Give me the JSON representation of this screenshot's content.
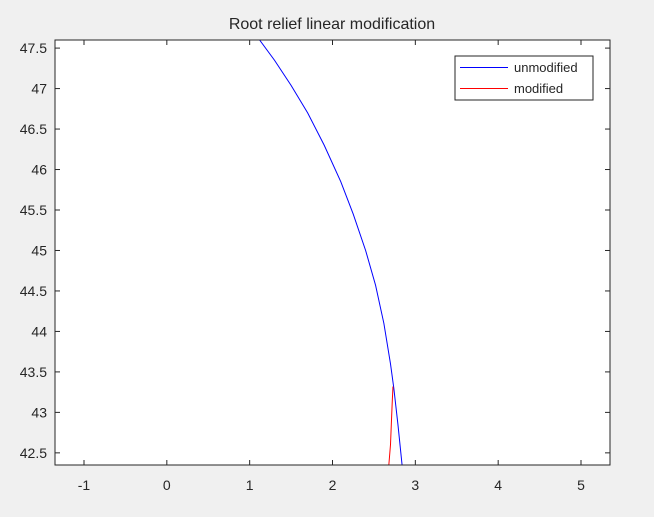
{
  "chart_data": {
    "type": "line",
    "title": "Root relief linear modification",
    "xlabel": "",
    "ylabel": "",
    "xlim": [
      -1.35,
      5.35
    ],
    "ylim": [
      42.35,
      47.6
    ],
    "xticks": [
      -1,
      0,
      1,
      2,
      3,
      4,
      5
    ],
    "yticks": [
      42.5,
      43,
      43.5,
      44,
      44.5,
      45,
      45.5,
      46,
      46.5,
      47,
      47.5
    ],
    "grid": false,
    "legend_position": "top-right",
    "series": [
      {
        "name": "unmodified",
        "color": "#0000ff",
        "points": [
          [
            1.12,
            47.6
          ],
          [
            1.3,
            47.35
          ],
          [
            1.5,
            47.04
          ],
          [
            1.7,
            46.7
          ],
          [
            1.9,
            46.3
          ],
          [
            2.1,
            45.85
          ],
          [
            2.25,
            45.45
          ],
          [
            2.4,
            45.0
          ],
          [
            2.52,
            44.57
          ],
          [
            2.62,
            44.1
          ],
          [
            2.7,
            43.6
          ],
          [
            2.74,
            43.3
          ],
          [
            2.79,
            42.85
          ],
          [
            2.84,
            42.35
          ]
        ]
      },
      {
        "name": "modified",
        "color": "#ff0000",
        "points": [
          [
            2.73,
            43.32
          ],
          [
            2.72,
            43.1
          ],
          [
            2.71,
            42.85
          ],
          [
            2.7,
            42.6
          ],
          [
            2.68,
            42.35
          ]
        ]
      }
    ]
  }
}
